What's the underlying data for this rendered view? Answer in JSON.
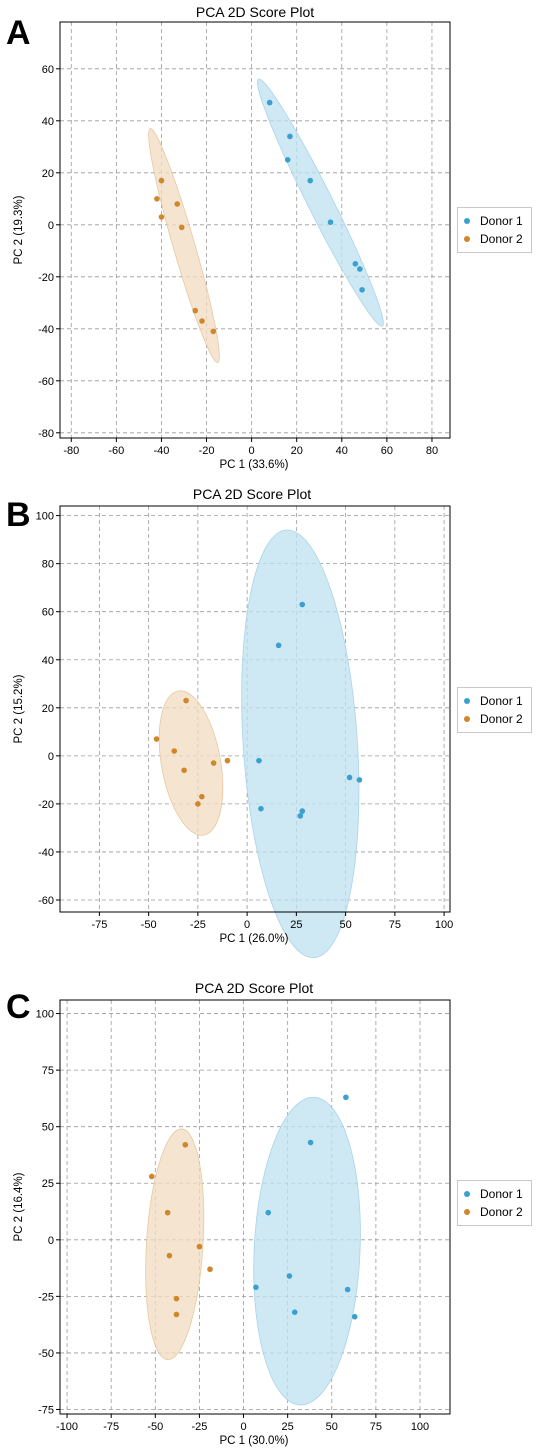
{
  "legend": {
    "donor1": "Donor 1",
    "donor2": "Donor 2"
  },
  "colors": {
    "donor1": "#3aa0d0",
    "donor2": "#d0862a",
    "donor1_fill": "#bde0f0",
    "donor2_fill": "#f1dcc0",
    "grid": "#9a9a9a"
  },
  "panels": [
    {
      "letter": "A",
      "title": "PCA 2D Score Plot",
      "xlabel": "PC 1 (33.6%)",
      "ylabel": "PC 2 (19.3%)"
    },
    {
      "letter": "B",
      "title": "PCA 2D Score Plot",
      "xlabel": "PC 1 (26.0%)",
      "ylabel": "PC 2 (15.2%)"
    },
    {
      "letter": "C",
      "title": "PCA 2D Score Plot",
      "xlabel": "PC 1 (30.0%)",
      "ylabel": "PC 2 (16.4%)"
    }
  ],
  "chart_data": [
    {
      "type": "scatter",
      "title": "PCA 2D Score Plot",
      "xlabel": "PC 1 (33.6%)",
      "ylabel": "PC 2 (19.3%)",
      "xlim": [
        -85,
        88
      ],
      "ylim": [
        -82,
        78
      ],
      "xticks": [
        -80,
        -60,
        -40,
        -20,
        0,
        20,
        40,
        60,
        80
      ],
      "yticks": [
        -80,
        -60,
        -40,
        -20,
        0,
        20,
        40,
        60
      ],
      "grid": true,
      "legend_position": "right",
      "series": [
        {
          "name": "Donor 1",
          "points": [
            [
              8,
              47
            ],
            [
              17,
              34
            ],
            [
              16,
              25
            ],
            [
              26,
              17
            ],
            [
              35,
              1
            ],
            [
              46,
              -15
            ],
            [
              48,
              -17
            ],
            [
              49,
              -25
            ]
          ]
        },
        {
          "name": "Donor 2",
          "points": [
            [
              -40,
              17
            ],
            [
              -42,
              10
            ],
            [
              -40,
              3
            ],
            [
              -33,
              8
            ],
            [
              -31,
              -1
            ],
            [
              -25,
              -33
            ],
            [
              -22,
              -37
            ],
            [
              -17,
              -41
            ]
          ]
        }
      ],
      "confidence_ellipses": [
        {
          "series": "Donor 1",
          "center": [
            31,
            5
          ],
          "endpoints": [
            [
              3,
              56
            ],
            [
              58,
              -39
            ]
          ],
          "minor_radius": 5.5
        },
        {
          "series": "Donor 2",
          "center": [
            -30,
            -13
          ],
          "endpoints": [
            [
              -45,
              37
            ],
            [
              -15,
              -53
            ]
          ],
          "minor_radius": 4.8
        }
      ]
    },
    {
      "type": "scatter",
      "title": "PCA 2D Score Plot",
      "xlabel": "PC 1 (26.0%)",
      "ylabel": "PC 2 (15.2%)",
      "xlim": [
        -95,
        103
      ],
      "ylim": [
        -65,
        104
      ],
      "xticks": [
        -75,
        -50,
        -25,
        0,
        25,
        50,
        75,
        100
      ],
      "yticks": [
        -60,
        -40,
        -20,
        0,
        20,
        40,
        60,
        80,
        100
      ],
      "grid": true,
      "legend_position": "right",
      "series": [
        {
          "name": "Donor 1",
          "points": [
            [
              28,
              63
            ],
            [
              16,
              46
            ],
            [
              6,
              -2
            ],
            [
              7,
              -22
            ],
            [
              28,
              -23
            ],
            [
              27,
              -25
            ],
            [
              52,
              -9
            ],
            [
              57,
              -10
            ]
          ]
        },
        {
          "name": "Donor 2",
          "points": [
            [
              -46,
              7
            ],
            [
              -31,
              23
            ],
            [
              -37,
              2
            ],
            [
              -32,
              -6
            ],
            [
              -17,
              -3
            ],
            [
              -10,
              -2
            ],
            [
              -23,
              -17
            ],
            [
              -25,
              -20
            ]
          ]
        }
      ],
      "confidence_ellipses": [
        {
          "series": "Donor 1",
          "center": [
            27,
            5
          ],
          "endpoints": [
            [
              20,
              94
            ],
            [
              34,
              -84
            ]
          ],
          "minor_radius": 29
        },
        {
          "series": "Donor 2",
          "center": [
            -28,
            -3
          ],
          "endpoints": [
            [
              -35,
              27
            ],
            [
              -22,
              -33
            ]
          ],
          "minor_radius": 15
        }
      ]
    },
    {
      "type": "scatter",
      "title": "PCA 2D Score Plot",
      "xlabel": "PC 1 (30.0%)",
      "ylabel": "PC 2 (16.4%)",
      "xlim": [
        -104,
        117
      ],
      "ylim": [
        -77,
        106
      ],
      "xticks": [
        -100,
        -75,
        -50,
        -25,
        0,
        25,
        50,
        75,
        100
      ],
      "yticks": [
        -75,
        -50,
        -25,
        0,
        25,
        50,
        75,
        100
      ],
      "grid": true,
      "legend_position": "right",
      "series": [
        {
          "name": "Donor 1",
          "points": [
            [
              58,
              63
            ],
            [
              38,
              43
            ],
            [
              14,
              12
            ],
            [
              7,
              -21
            ],
            [
              26,
              -16
            ],
            [
              29,
              -32
            ],
            [
              59,
              -22
            ],
            [
              63,
              -34
            ]
          ]
        },
        {
          "name": "Donor 2",
          "points": [
            [
              -33,
              42
            ],
            [
              -52,
              28
            ],
            [
              -43,
              12
            ],
            [
              -42,
              -7
            ],
            [
              -25,
              -3
            ],
            [
              -19,
              -13
            ],
            [
              -38,
              -26
            ],
            [
              -38,
              -33
            ]
          ]
        }
      ],
      "confidence_ellipses": [
        {
          "series": "Donor 1",
          "center": [
            36,
            -5
          ],
          "endpoints": [
            [
              40,
              63
            ],
            [
              32,
              -73
            ]
          ],
          "minor_radius": 30
        },
        {
          "series": "Donor 2",
          "center": [
            -39,
            -2
          ],
          "endpoints": [
            [
              -35,
              49
            ],
            [
              -43,
              -53
            ]
          ],
          "minor_radius": 16
        }
      ]
    }
  ]
}
